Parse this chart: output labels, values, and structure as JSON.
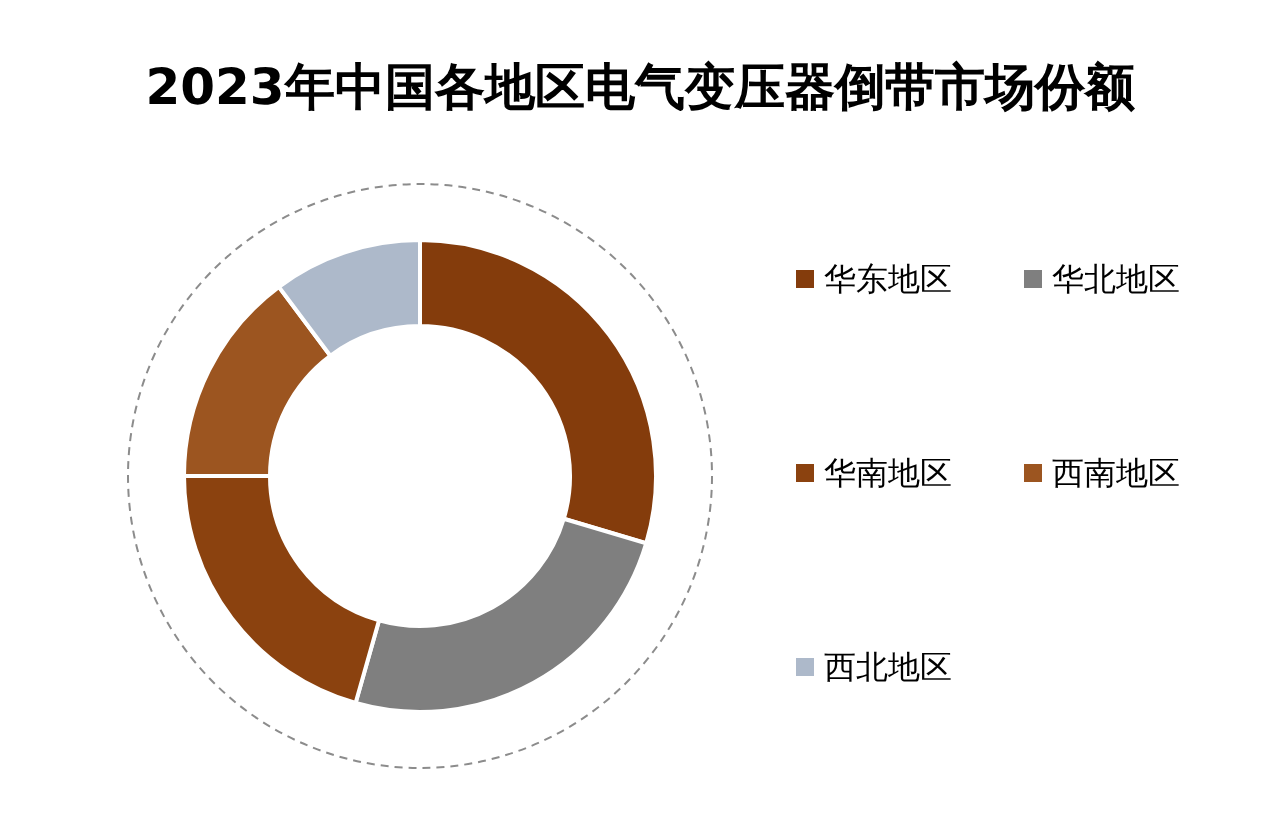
{
  "chart_data": {
    "type": "donut",
    "title": "2023年中国各地区电气变压器倒带市场份额",
    "categories": [
      "华东地区",
      "华北地区",
      "华南地区",
      "西南地区",
      "西北地区"
    ],
    "values": [
      29.6,
      24.8,
      20.6,
      14.8,
      10.2
    ],
    "colors": [
      "#843c0c",
      "#7f7f7f",
      "#8b420f",
      "#9c5520",
      "#adb9ca"
    ],
    "legend": "right"
  }
}
